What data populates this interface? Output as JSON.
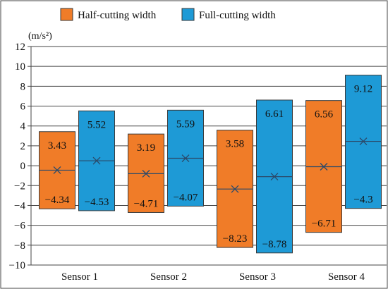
{
  "chart_data": {
    "type": "floating-bar",
    "ylabel": "(m/s²)",
    "ylim": [
      -10,
      12
    ],
    "yticks": [
      -10,
      -8,
      -6,
      -4,
      -2,
      0,
      2,
      4,
      6,
      8,
      10,
      12
    ],
    "grid": true,
    "legend_position": "top-left",
    "categories": [
      "Sensor 1",
      "Sensor 2",
      "Sensor 3",
      "Sensor 4"
    ],
    "series": [
      {
        "name": "Half-cutting width",
        "color": "#f07c28",
        "max": [
          3.43,
          3.19,
          3.58,
          6.56
        ],
        "min": [
          -4.34,
          -4.71,
          -8.23,
          -6.71
        ],
        "mean_marker": [
          -0.45,
          -0.8,
          -2.35,
          -0.1
        ]
      },
      {
        "name": "Full-cutting width",
        "color": "#1e9ad6",
        "max": [
          5.52,
          5.59,
          6.61,
          9.12
        ],
        "min": [
          -4.53,
          -4.07,
          -8.78,
          -4.3
        ],
        "mean_marker": [
          0.5,
          0.75,
          -1.1,
          2.45
        ]
      }
    ],
    "max_labels": [
      [
        "3.43",
        "3.19",
        "3.58",
        "6.56"
      ],
      [
        "5.52",
        "5.59",
        "6.61",
        "9.12"
      ]
    ],
    "min_labels": [
      [
        "−4.34",
        "−4.71",
        "−8.23",
        "−6.71"
      ],
      [
        "−4.53",
        "−4.07",
        "−8.78",
        "−4.3"
      ]
    ],
    "ytick_labels": [
      "−10",
      "−8",
      "−6",
      "−4",
      "−2",
      "0",
      "2",
      "4",
      "6",
      "8",
      "10",
      "12"
    ]
  }
}
